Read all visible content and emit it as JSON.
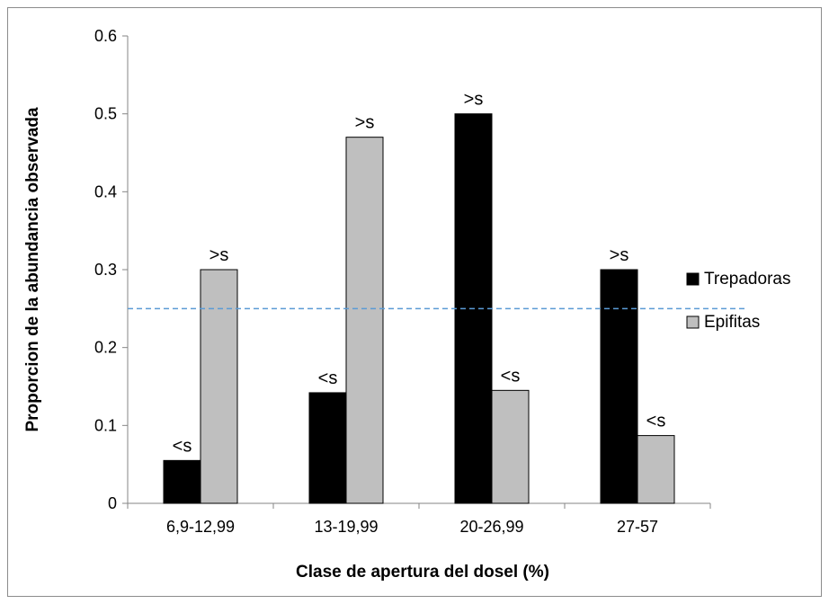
{
  "chart_data": {
    "type": "bar",
    "title": "",
    "xlabel": "Clase de apertura del dosel (%)",
    "ylabel": "Proporcion de la abundancia observada",
    "ylim": [
      0,
      0.6
    ],
    "y_ticks": [
      "0",
      "0.1",
      "0.2",
      "0.3",
      "0.4",
      "0.5",
      "0.6"
    ],
    "y_tick_values": [
      0,
      0.1,
      0.2,
      0.3,
      0.4,
      0.5,
      0.6
    ],
    "categories": [
      "6,9-12,99",
      "13-19,99",
      "20-26,99",
      "27-57"
    ],
    "series": [
      {
        "name": "Trepadoras",
        "color": "#000000",
        "values": [
          0.055,
          0.142,
          0.5,
          0.3
        ],
        "labels": [
          "<s",
          "<s",
          ">s",
          ">s"
        ]
      },
      {
        "name": "Epifitas",
        "color": "#bfbfbf",
        "values": [
          0.3,
          0.47,
          0.145,
          0.087
        ],
        "labels": [
          ">s",
          ">s",
          "<s",
          "<s"
        ]
      }
    ],
    "reference_line": {
      "value": 0.25,
      "color": "#5b9bd5",
      "style": "dashed"
    },
    "grid": false,
    "legend_position": "right"
  }
}
